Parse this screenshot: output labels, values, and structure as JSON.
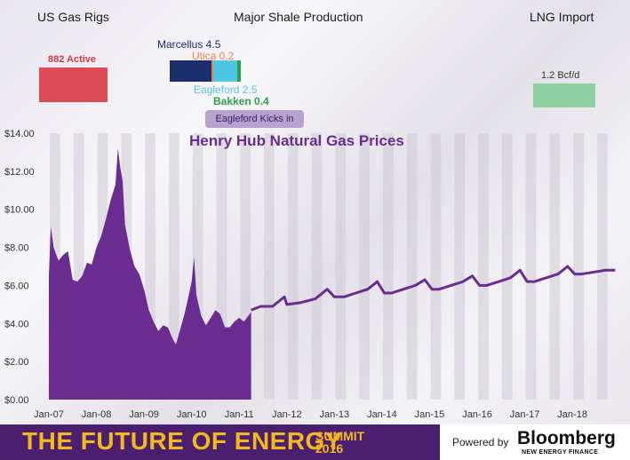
{
  "header": {
    "rigs_title": "US Gas Rigs",
    "shale_title": "Major Shale Production",
    "lng_title": "LNG Import"
  },
  "rigs": {
    "label": "882 Active",
    "color": "#dd4b56"
  },
  "shale": {
    "items": [
      {
        "name": "Marcellus",
        "label": "Marcellus 4.5",
        "value": 4.5,
        "color": "#1a2e6b"
      },
      {
        "name": "Utica",
        "label": "Utica 0.2",
        "value": 0.2,
        "color": "#e8814f"
      },
      {
        "name": "Eagleford",
        "label": "Eagleford 2.5",
        "value": 2.5,
        "color": "#4ec6e4"
      },
      {
        "name": "Bakken",
        "label": "Bakken 0.4",
        "value": 0.4,
        "color": "#2ca24b"
      }
    ],
    "kick_label": "Eagleford Kicks in"
  },
  "lng": {
    "label": "1.2 Bcf/d",
    "color": "#8ed2a2"
  },
  "chart_data": {
    "type": "area",
    "title": "Henry Hub Natural Gas Prices",
    "xlabel": "",
    "ylabel": "",
    "ylim": [
      0,
      14
    ],
    "xlim": [
      2007.0,
      2018.95
    ],
    "y_ticks": [
      "$0.00",
      "$2.00",
      "$4.00",
      "$6.00",
      "$8.00",
      "$10.00",
      "$12.00",
      "$14.00"
    ],
    "x_ticks": [
      "Jan-07",
      "Jan-08",
      "Jan-09",
      "Jan-10",
      "Jan-11",
      "Jan-12",
      "Jan-13",
      "Jan-14",
      "Jan-15",
      "Jan-16",
      "Jan-17",
      "Jan-18"
    ],
    "grid": "vertical shaded bands",
    "series": [
      {
        "style": "filled-area",
        "color": "#6b2c91",
        "x": [
          2007.0,
          2007.04,
          2007.1,
          2007.2,
          2007.3,
          2007.4,
          2007.5,
          2007.6,
          2007.7,
          2007.8,
          2007.9,
          2008.0,
          2008.1,
          2008.2,
          2008.3,
          2008.4,
          2008.45,
          2008.5,
          2008.55,
          2008.6,
          2008.7,
          2008.8,
          2008.9,
          2009.0,
          2009.1,
          2009.2,
          2009.3,
          2009.4,
          2009.5,
          2009.6,
          2009.67,
          2009.75,
          2009.85,
          2009.95,
          2010.0,
          2010.05,
          2010.1,
          2010.2,
          2010.3,
          2010.4,
          2010.5,
          2010.6,
          2010.7,
          2010.8,
          2010.9,
          2011.0,
          2011.1,
          2011.25
        ],
        "y": [
          6.5,
          9.1,
          8.0,
          7.3,
          7.6,
          7.8,
          6.3,
          6.2,
          6.5,
          7.2,
          7.1,
          8.0,
          8.6,
          9.5,
          10.5,
          11.3,
          13.2,
          12.2,
          11.5,
          9.2,
          7.9,
          7.0,
          6.6,
          5.8,
          4.7,
          4.1,
          3.6,
          3.9,
          3.8,
          3.2,
          2.9,
          3.6,
          4.5,
          5.6,
          6.2,
          7.5,
          5.5,
          4.4,
          3.9,
          4.3,
          4.7,
          4.5,
          3.8,
          3.8,
          4.1,
          4.3,
          4.1,
          4.6
        ]
      },
      {
        "style": "line",
        "color": "#6b2c91",
        "x": [
          2011.25,
          2011.45,
          2011.7,
          2011.95,
          2012.0,
          2012.3,
          2012.6,
          2012.85,
          2013.0,
          2013.2,
          2013.45,
          2013.7,
          2013.9,
          2014.05,
          2014.2,
          2014.45,
          2014.7,
          2014.9,
          2015.05,
          2015.2,
          2015.45,
          2015.7,
          2015.9,
          2016.05,
          2016.2,
          2016.45,
          2016.7,
          2016.9,
          2017.05,
          2017.2,
          2017.45,
          2017.7,
          2017.9,
          2018.05,
          2018.2,
          2018.45,
          2018.7,
          2018.9
        ],
        "y": [
          4.7,
          4.9,
          4.9,
          5.4,
          5.0,
          5.1,
          5.3,
          5.8,
          5.4,
          5.4,
          5.6,
          5.8,
          6.2,
          5.6,
          5.6,
          5.8,
          6.0,
          6.3,
          5.8,
          5.8,
          6.0,
          6.2,
          6.5,
          6.0,
          6.0,
          6.2,
          6.4,
          6.8,
          6.2,
          6.2,
          6.4,
          6.6,
          7.0,
          6.6,
          6.6,
          6.7,
          6.8,
          6.8
        ]
      }
    ]
  },
  "footer": {
    "title": "THE FUTURE OF ENERGY",
    "summit": "SUMMIT",
    "year": "2016",
    "powered": "Powered by",
    "brand": "Bloomberg",
    "brand_sub": "NEW ENERGY FINANCE"
  }
}
